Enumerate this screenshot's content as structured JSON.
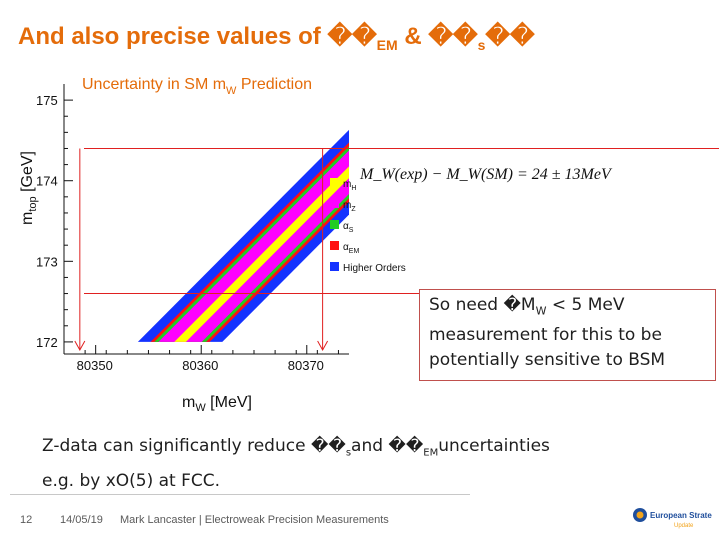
{
  "slide": {
    "title_main": "And also precise values of ",
    "title_glyph1": "��",
    "title_sub1": "EM",
    "title_amp": " & ",
    "title_glyph2": "��",
    "title_sub2": "s",
    "title_glyph3": "��"
  },
  "chart_data": {
    "type": "area",
    "title": "Uncertainty in SM m_W Prediction",
    "title_main": "Uncertainty in SM m",
    "title_sub": "W",
    "title_tail": " Prediction",
    "xlabel_main": "m",
    "xlabel_sub": "W",
    "xlabel_tail": " [MeV]",
    "ylabel_main": "m",
    "ylabel_sub": "top",
    "ylabel_tail": " [GeV]",
    "xlim": [
      80347,
      80374
    ],
    "ylim": [
      171.85,
      175.2
    ],
    "x_ticks": [
      "80350",
      "80360",
      "80370"
    ],
    "x_tick_values": [
      80350,
      80360,
      80370
    ],
    "y_ticks": [
      "172",
      "173",
      "174",
      "175"
    ],
    "y_tick_values": [
      172,
      173,
      174,
      175
    ],
    "band_slope_mev_per_gev": 7.6,
    "band_center_at_172": 80358.0,
    "bands": [
      {
        "name": "Higher Orders",
        "color": "#1432ff",
        "halfwidth": 4.0
      },
      {
        "name": "α_EM",
        "color": "#ff1010",
        "halfwidth": 2.8
      },
      {
        "name": "α_s",
        "color": "#22cc22",
        "halfwidth": 2.45
      },
      {
        "name": "m_Z",
        "color": "#ff00ff",
        "halfwidth": 2.05
      },
      {
        "name": "m_H",
        "color": "#ffff00",
        "halfwidth": 0.55
      }
    ],
    "band_clip_y": [
      172.0,
      175.0
    ],
    "legend": [
      {
        "label": "m",
        "sub": "H",
        "color": "#ffff00"
      },
      {
        "label": "m",
        "sub": "Z",
        "color": "#ff00ff"
      },
      {
        "label": "α",
        "sub": "S",
        "color": "#22cc22"
      },
      {
        "label": "α",
        "sub": "EM",
        "color": "#ff1010"
      },
      {
        "label": "Higher Orders",
        "sub": "",
        "color": "#1432ff"
      }
    ],
    "ref_lines": {
      "h_mtop_upper": 174.4,
      "h_mtop_lower": 172.6,
      "v_mw_left": 80348.5,
      "v_mw_right": 80371.5
    },
    "formula": "M_W(exp) − M_W(SM) = 24 ± 13MeV"
  },
  "note": {
    "line1_pre": "So need ",
    "line1_glyph": "�",
    "line1_m": "M",
    "line1_sub": "W",
    "line1_post": " < 5 MeV",
    "line2": "measurement for this to be",
    "line3": "potentially sensitive to BSM"
  },
  "zdata": {
    "line1_pre": "Z-data can significantly reduce ",
    "glyph_a": "��",
    "sub_a": "s",
    "mid": "and ",
    "glyph_b": "��",
    "sub_b": "EM",
    "post": "uncertainties",
    "line2": "e.g. by xO(5) at FCC."
  },
  "footer": {
    "page": "12",
    "date": "14/05/19",
    "author": "Mark Lancaster | Electroweak Precision Measurements",
    "logo_line1": "European Strategy",
    "logo_line2": "Update"
  }
}
